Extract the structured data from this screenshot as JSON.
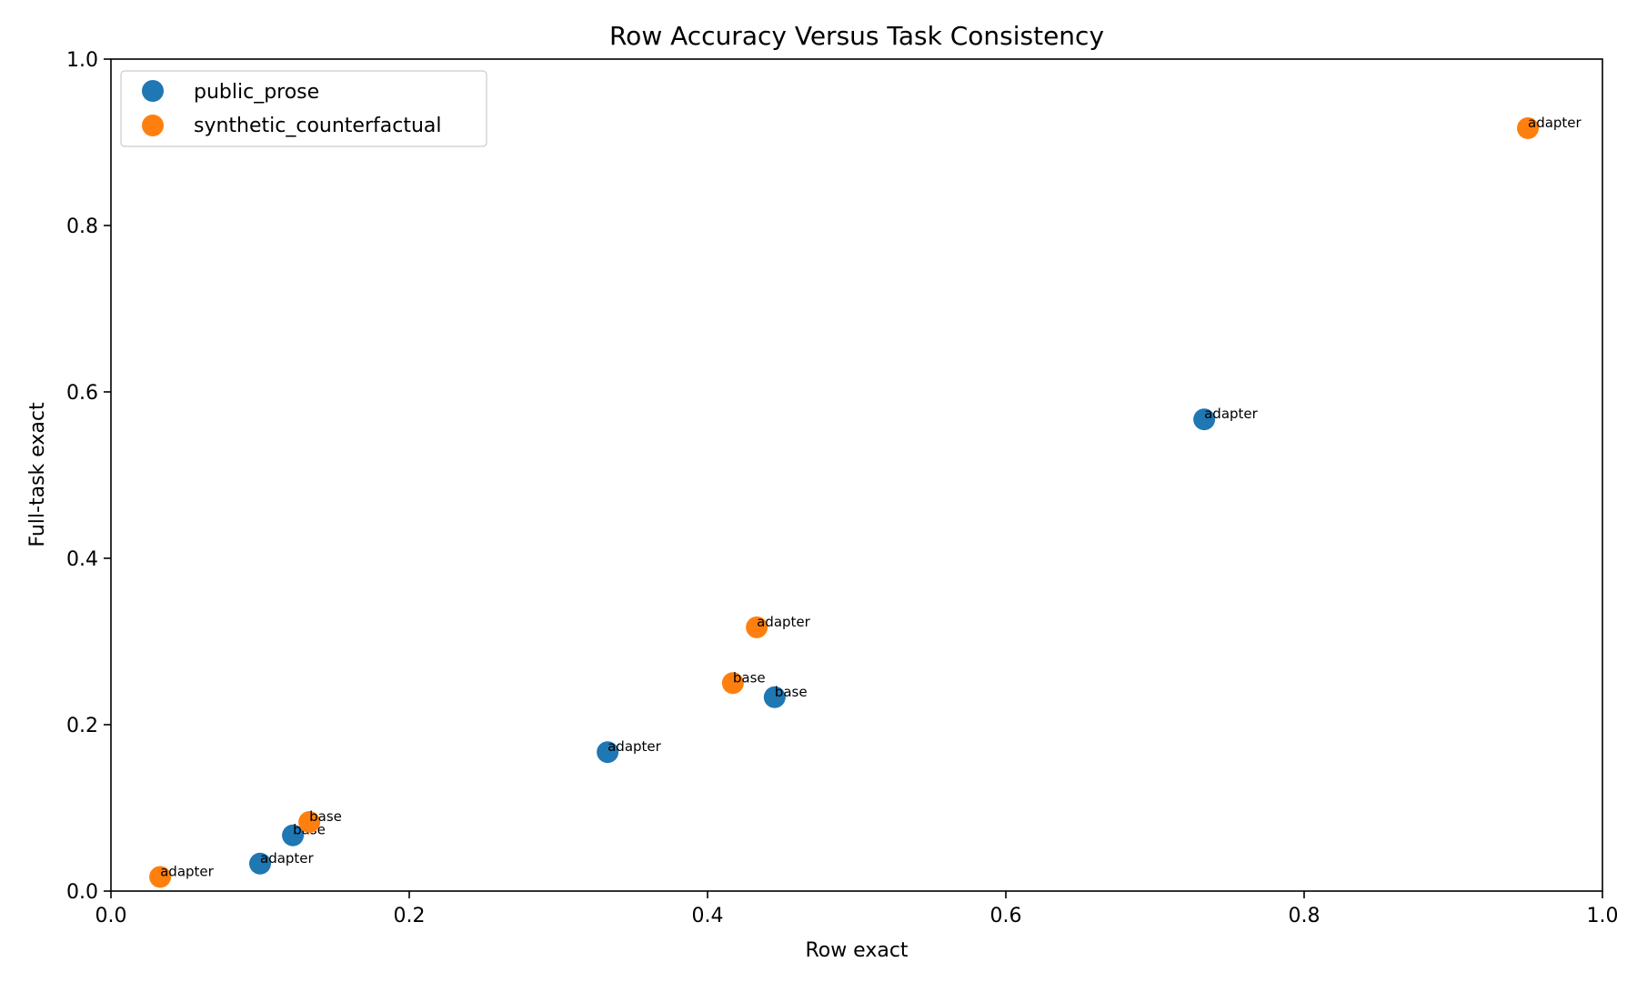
{
  "chart_data": {
    "type": "scatter",
    "title": "Row Accuracy Versus Task Consistency",
    "xlabel": "Row exact",
    "ylabel": "Full-task exact",
    "xlim": [
      0,
      1
    ],
    "ylim": [
      0,
      1
    ],
    "xticks": [
      "0.0",
      "0.2",
      "0.4",
      "0.6",
      "0.8",
      "1.0"
    ],
    "yticks": [
      "0.0",
      "0.2",
      "0.4",
      "0.6",
      "0.8",
      "1.0"
    ],
    "grid": false,
    "legend_position": "top-left",
    "series": [
      {
        "name": "public_prose",
        "color": "#1f77b4",
        "points": [
          {
            "x": 0.733,
            "y": 0.567,
            "label": "adapter"
          },
          {
            "x": 0.445,
            "y": 0.233,
            "label": "base"
          },
          {
            "x": 0.333,
            "y": 0.167,
            "label": "adapter"
          },
          {
            "x": 0.122,
            "y": 0.067,
            "label": "base"
          },
          {
            "x": 0.1,
            "y": 0.033,
            "label": "adapter"
          }
        ]
      },
      {
        "name": "synthetic_counterfactual",
        "color": "#ff7f0e",
        "points": [
          {
            "x": 0.95,
            "y": 0.917,
            "label": "adapter"
          },
          {
            "x": 0.433,
            "y": 0.317,
            "label": "adapter"
          },
          {
            "x": 0.417,
            "y": 0.25,
            "label": "base"
          },
          {
            "x": 0.133,
            "y": 0.083,
            "label": "base"
          },
          {
            "x": 0.033,
            "y": 0.017,
            "label": "adapter"
          }
        ]
      }
    ]
  }
}
